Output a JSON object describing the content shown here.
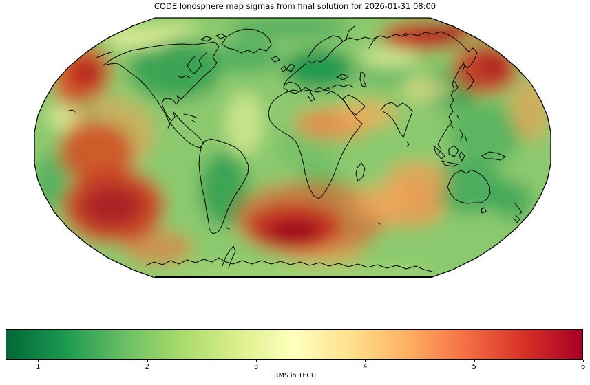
{
  "title": "CODE Ionosphere map sigmas from final solution for 2026-01-31 08:00",
  "colorbar": {
    "label": "RMS in TECU",
    "ticks": [
      1,
      2,
      3,
      4,
      5,
      6
    ],
    "vmin": 0.7,
    "vmax": 6.0,
    "colormap_name": "RdYlGn reversed",
    "stops": [
      "#006837",
      "#1a9850",
      "#66bd63",
      "#a6d96a",
      "#d9ef8b",
      "#ffffbf",
      "#fee08b",
      "#fdae61",
      "#f46d43",
      "#d73027",
      "#a50026"
    ]
  },
  "chart_data": {
    "type": "heatmap",
    "title": "CODE Ionosphere map sigmas from final solution for 2026-01-31 08:00",
    "projection": "Robinson-style world map with coastlines, no graticule",
    "value_label": "RMS in TECU",
    "value_range": [
      0.7,
      6.0
    ],
    "colorbar_ticks": [
      1,
      2,
      3,
      4,
      5,
      6
    ],
    "colormap": "RdYlGn_r",
    "legend_position": "horizontal colorbar below map",
    "high_sigma_regions": [
      {
        "region": "Gulf of Alaska / NE Pacific",
        "approx_lon": -150,
        "approx_lat": 52,
        "approx_value_tecu": 5.0
      },
      {
        "region": "Eastern tropical Pacific",
        "approx_lon": -140,
        "approx_lat": 0,
        "approx_value_tecu": 4.8
      },
      {
        "region": "Southeast Pacific",
        "approx_lon": -125,
        "approx_lat": -45,
        "approx_value_tecu": 5.4
      },
      {
        "region": "South Atlantic southwest of Africa",
        "approx_lon": -10,
        "approx_lat": -55,
        "approx_value_tecu": 6.0
      },
      {
        "region": "Northeast Siberia (Arctic coast)",
        "approx_lon": 150,
        "approx_lat": 70,
        "approx_value_tecu": 5.6
      },
      {
        "region": "Kamchatka / NW Pacific rim",
        "approx_lon": 165,
        "approx_lat": 50,
        "approx_value_tecu": 5.0
      },
      {
        "region": "Sahel / Red Sea / Arabia band",
        "approx_lon": 30,
        "approx_lat": 18,
        "approx_value_tecu": 4.3
      },
      {
        "region": "Southern Indian Ocean",
        "approx_lon": 80,
        "approx_lat": -40,
        "approx_value_tecu": 4.0
      }
    ],
    "low_sigma_regions": [
      {
        "region": "Central / Eastern Europe",
        "approx_lon": 15,
        "approx_lat": 50,
        "approx_value_tecu": 1.2
      },
      {
        "region": "Canada / Hudson Bay",
        "approx_lon": -85,
        "approx_lat": 55,
        "approx_value_tecu": 1.5
      },
      {
        "region": "Japan / Korea / NE China",
        "approx_lon": 135,
        "approx_lat": 38,
        "approx_value_tecu": 1.6
      },
      {
        "region": "Southern South America",
        "approx_lon": -65,
        "approx_lat": -38,
        "approx_value_tecu": 1.6
      },
      {
        "region": "Australia / New Zealand",
        "approx_lon": 135,
        "approx_lat": -28,
        "approx_value_tecu": 1.8
      },
      {
        "region": "Near Hawaii",
        "approx_lon": -155,
        "approx_lat": 22,
        "approx_value_tecu": 2.0
      }
    ]
  }
}
